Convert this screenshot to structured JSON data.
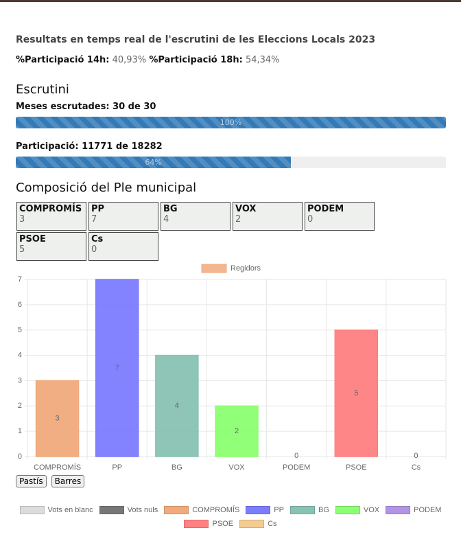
{
  "title": "Resultats en temps real de l'escrutini de les Eleccions Locals 2023",
  "participation": [
    {
      "label": "%Participació 14h:",
      "value": "40,93%"
    },
    {
      "label": "%Participació 18h:",
      "value": "54,34%"
    }
  ],
  "escrutini": {
    "heading": "Escrutini",
    "progress": [
      {
        "label": "Meses escrutades: 30 de 30",
        "percent": {
          "value": 100,
          "label": "100%"
        }
      },
      {
        "label": "Participació: 11771 de 18282",
        "percent": {
          "value": 64,
          "label": "64%"
        }
      }
    ]
  },
  "composition": {
    "heading": "Composició del Ple municipal",
    "parties": [
      {
        "name": "COMPROMÍS",
        "seats": 3
      },
      {
        "name": "PP",
        "seats": 7
      },
      {
        "name": "BG",
        "seats": 4
      },
      {
        "name": "VOX",
        "seats": 2
      },
      {
        "name": "PODEM",
        "seats": 0
      },
      {
        "name": "PSOE",
        "seats": 5
      },
      {
        "name": "Cs",
        "seats": 0
      }
    ]
  },
  "chart_data": {
    "type": "bar",
    "categories": [
      "COMPROMÍS",
      "PP",
      "BG",
      "VOX",
      "PODEM",
      "PSOE",
      "Cs"
    ],
    "series": [
      {
        "name": "Regidors",
        "color": "#f0aa7c",
        "values": [
          3,
          7,
          4,
          2,
          0,
          5,
          0
        ],
        "colors": [
          "#f0aa7c",
          "#7c7cff",
          "#88c2b2",
          "#8cff72",
          "#b393e3",
          "#ff8080",
          "#f5cc8f"
        ]
      }
    ],
    "ylim": [
      0,
      7
    ],
    "yticks": [
      0,
      1,
      2,
      3,
      4,
      5,
      6,
      7
    ],
    "grid": true,
    "legend": "top"
  },
  "buttons": [
    "Pastís",
    "Barres"
  ],
  "legend": [
    {
      "name": "Vots en blanc",
      "color": "#dcdcdc"
    },
    {
      "name": "Vots nuls",
      "color": "#777777"
    },
    {
      "name": "COMPROMÍS",
      "color": "#f0aa7c"
    },
    {
      "name": "PP",
      "color": "#7c7cff"
    },
    {
      "name": "BG",
      "color": "#88c2b2"
    },
    {
      "name": "VOX",
      "color": "#8cff72"
    },
    {
      "name": "PODEM",
      "color": "#b393e3"
    },
    {
      "name": "PSOE",
      "color": "#ff8080"
    },
    {
      "name": "Cs",
      "color": "#f5cc8f"
    }
  ]
}
